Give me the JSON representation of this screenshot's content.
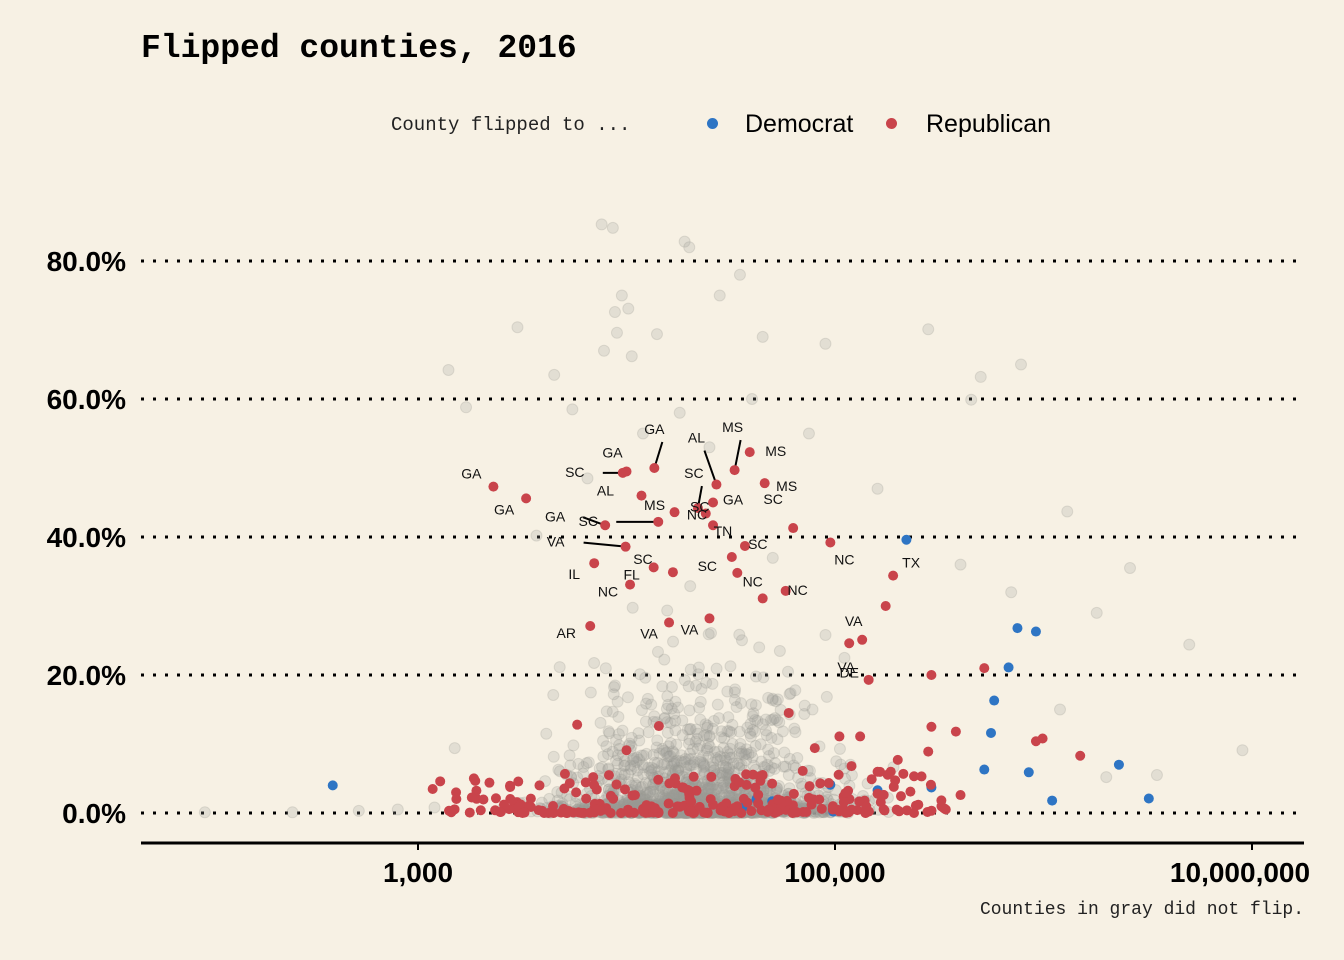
{
  "chart_data": {
    "type": "scatter",
    "title": "Flipped counties, 2016",
    "xlabel": "",
    "ylabel": "",
    "x_scale": "log10",
    "xlim": [
      50,
      20000000
    ],
    "ylim": [
      -4,
      90
    ],
    "x_ticks": [
      1000,
      100000,
      10000000
    ],
    "x_tick_labels": [
      "1,000",
      "100,000",
      "10,000,000"
    ],
    "y_ticks": [
      0,
      20,
      40,
      60,
      80
    ],
    "y_tick_labels": [
      "0.0%",
      "20.0%",
      "40.0%",
      "60.0%",
      "80.0%"
    ],
    "grid": "horizontal dotted",
    "legend": {
      "title": "County flipped to ...",
      "placement": "top-center",
      "entries": [
        {
          "name": "Democrat",
          "color": "#2e75c4"
        },
        {
          "name": "Republican",
          "color": "#c9444b"
        }
      ]
    },
    "caption": "Counties in gray did not flip.",
    "colors": {
      "background": "#f7f1e4",
      "gray": "#9a9a94",
      "democrat": "#2e75c4",
      "republican": "#c9444b"
    },
    "series": [
      {
        "name": "Democrat",
        "points": [
          {
            "pop": 390,
            "pct": 4.0
          },
          {
            "pop": 220000,
            "pct": 39.6
          },
          {
            "pop": 750000,
            "pct": 26.8
          },
          {
            "pop": 920000,
            "pct": 26.3
          },
          {
            "pop": 680000,
            "pct": 21.1
          },
          {
            "pop": 580000,
            "pct": 16.3
          },
          {
            "pop": 560000,
            "pct": 11.6
          },
          {
            "pop": 520000,
            "pct": 6.3
          },
          {
            "pop": 850000,
            "pct": 5.9
          },
          {
            "pop": 1100000,
            "pct": 1.8
          },
          {
            "pop": 2300000,
            "pct": 7.0
          },
          {
            "pop": 3200000,
            "pct": 2.1
          },
          {
            "pop": 290000,
            "pct": 3.7
          },
          {
            "pop": 160000,
            "pct": 3.3
          },
          {
            "pop": 95000,
            "pct": 4.1
          },
          {
            "pop": 42000,
            "pct": 2.0
          },
          {
            "pop": 50000,
            "pct": 1.7
          },
          {
            "pop": 36000,
            "pct": 0.8
          },
          {
            "pop": 98000,
            "pct": 0.2
          }
        ]
      },
      {
        "name": "Republican",
        "points": [
          {
            "pop": 2300,
            "pct": 47.3,
            "label": "GA"
          },
          {
            "pop": 3300,
            "pct": 45.6,
            "label": "GA"
          },
          {
            "pop": 9600,
            "pct": 49.3,
            "label": "SC"
          },
          {
            "pop": 10000,
            "pct": 49.5,
            "label": "GA"
          },
          {
            "pop": 7900,
            "pct": 41.7,
            "label": "GA"
          },
          {
            "pop": 9900,
            "pct": 38.6,
            "label": "VA"
          },
          {
            "pop": 14200,
            "pct": 42.2,
            "label": "SC"
          },
          {
            "pop": 11800,
            "pct": 46.0,
            "label": "AL"
          },
          {
            "pop": 13600,
            "pct": 50.0,
            "label": "GA"
          },
          {
            "pop": 27000,
            "pct": 47.6,
            "label": "AL"
          },
          {
            "pop": 33000,
            "pct": 49.7,
            "label": "MS"
          },
          {
            "pop": 22000,
            "pct": 44.2,
            "label": "SC"
          },
          {
            "pop": 26000,
            "pct": 45.0,
            "label": "GA"
          },
          {
            "pop": 17000,
            "pct": 43.6,
            "label": "MS"
          },
          {
            "pop": 24000,
            "pct": 43.4,
            "label": "SC"
          },
          {
            "pop": 26000,
            "pct": 41.7,
            "label": "NC"
          },
          {
            "pop": 39000,
            "pct": 52.3,
            "label": "MS"
          },
          {
            "pop": 46000,
            "pct": 47.8,
            "label": "MS"
          },
          {
            "pop": 63000,
            "pct": 41.3,
            "label": "SC"
          },
          {
            "pop": 37000,
            "pct": 38.7,
            "label": "TN"
          },
          {
            "pop": 32000,
            "pct": 37.1,
            "label": "SC"
          },
          {
            "pop": 34000,
            "pct": 34.8,
            "label": "SC"
          },
          {
            "pop": 13500,
            "pct": 35.6,
            "label": "FL"
          },
          {
            "pop": 16700,
            "pct": 34.9,
            "label": "SC"
          },
          {
            "pop": 7000,
            "pct": 36.2,
            "label": "IL"
          },
          {
            "pop": 10400,
            "pct": 33.1,
            "label": "NC"
          },
          {
            "pop": 6700,
            "pct": 27.1,
            "label": "AR"
          },
          {
            "pop": 16000,
            "pct": 27.6,
            "label": "VA"
          },
          {
            "pop": 25000,
            "pct": 28.2,
            "label": "VA"
          },
          {
            "pop": 45000,
            "pct": 31.1,
            "label": "NC"
          },
          {
            "pop": 58000,
            "pct": 32.2,
            "label": "NC"
          },
          {
            "pop": 95000,
            "pct": 39.2,
            "label": "NC"
          },
          {
            "pop": 190000,
            "pct": 34.4,
            "label": "TX"
          },
          {
            "pop": 175000,
            "pct": 30.0,
            "label": "VA"
          },
          {
            "pop": 135000,
            "pct": 25.1,
            "label": "VA"
          },
          {
            "pop": 117000,
            "pct": 24.6,
            "label": "DE"
          },
          {
            "pop": 145000,
            "pct": 19.3
          },
          {
            "pop": 290000,
            "pct": 20.0
          },
          {
            "pop": 520000,
            "pct": 21.0
          },
          {
            "pop": 1500000,
            "pct": 8.3
          },
          {
            "pop": 920000,
            "pct": 10.4
          },
          {
            "pop": 990000,
            "pct": 10.8
          },
          {
            "pop": 5800,
            "pct": 12.8
          },
          {
            "pop": 10000,
            "pct": 9.1
          },
          {
            "pop": 14300,
            "pct": 12.6
          },
          {
            "pop": 60000,
            "pct": 14.5
          },
          {
            "pop": 80000,
            "pct": 9.4
          },
          {
            "pop": 105000,
            "pct": 11.1
          },
          {
            "pop": 132000,
            "pct": 11.1
          },
          {
            "pop": 290000,
            "pct": 12.5
          },
          {
            "pop": 380000,
            "pct": 11.8
          },
          {
            "pop": 280000,
            "pct": 8.9
          },
          {
            "pop": 7200,
            "pct": 3.4
          },
          {
            "pop": 2000,
            "pct": 0.4
          },
          {
            "pop": 3200,
            "pct": 0.5
          },
          {
            "pop": 5000,
            "pct": 0.6
          },
          {
            "pop": 8000,
            "pct": 0.7
          },
          {
            "pop": 12000,
            "pct": 0.6
          },
          {
            "pop": 18000,
            "pct": 0.9
          },
          {
            "pop": 26000,
            "pct": 1.2
          },
          {
            "pop": 38000,
            "pct": 1.5
          },
          {
            "pop": 55000,
            "pct": 1.8
          },
          {
            "pop": 75000,
            "pct": 2.2
          },
          {
            "pop": 110000,
            "pct": 2.4
          },
          {
            "pop": 160000,
            "pct": 2.8
          },
          {
            "pop": 230000,
            "pct": 3.1
          },
          {
            "pop": 400000,
            "pct": 2.6
          },
          {
            "pop": 45000,
            "pct": 5.5
          },
          {
            "pop": 70000,
            "pct": 6.1
          },
          {
            "pop": 120000,
            "pct": 6.8
          },
          {
            "pop": 200000,
            "pct": 7.7
          },
          {
            "pop": 33000,
            "pct": 3.9
          },
          {
            "pop": 20000,
            "pct": 2.7
          },
          {
            "pop": 85000,
            "pct": 4.3
          },
          {
            "pop": 150000,
            "pct": 4.9
          },
          {
            "pop": 260000,
            "pct": 5.3
          }
        ]
      },
      {
        "name": "Did not flip",
        "points": [
          {
            "pop": 95,
            "pct": 0.1
          },
          {
            "pop": 250,
            "pct": 0.1
          },
          {
            "pop": 520,
            "pct": 0.3
          },
          {
            "pop": 800,
            "pct": 0.5
          },
          {
            "pop": 1200,
            "pct": 0.8
          },
          {
            "pop": 1500,
            "pct": 9.4
          },
          {
            "pop": 1400,
            "pct": 64.2
          },
          {
            "pop": 1700,
            "pct": 58.8
          },
          {
            "pop": 3000,
            "pct": 70.4
          },
          {
            "pop": 4500,
            "pct": 63.5
          },
          {
            "pop": 5500,
            "pct": 58.5
          },
          {
            "pop": 3700,
            "pct": 40.2
          },
          {
            "pop": 6500,
            "pct": 48.5
          },
          {
            "pop": 7600,
            "pct": 85.3
          },
          {
            "pop": 8600,
            "pct": 84.8
          },
          {
            "pop": 9500,
            "pct": 75.0
          },
          {
            "pop": 8800,
            "pct": 72.6
          },
          {
            "pop": 10200,
            "pct": 73.1
          },
          {
            "pop": 9000,
            "pct": 69.6
          },
          {
            "pop": 7800,
            "pct": 67.0
          },
          {
            "pop": 10600,
            "pct": 66.2
          },
          {
            "pop": 14000,
            "pct": 69.4
          },
          {
            "pop": 19000,
            "pct": 82.8
          },
          {
            "pop": 20000,
            "pct": 82.0
          },
          {
            "pop": 28000,
            "pct": 75.0
          },
          {
            "pop": 35000,
            "pct": 78.0
          },
          {
            "pop": 45000,
            "pct": 69.0
          },
          {
            "pop": 90000,
            "pct": 68.0
          },
          {
            "pop": 280000,
            "pct": 70.1
          },
          {
            "pop": 500000,
            "pct": 63.2
          },
          {
            "pop": 780000,
            "pct": 65.0
          },
          {
            "pop": 450000,
            "pct": 59.9
          },
          {
            "pop": 1300000,
            "pct": 43.7
          },
          {
            "pop": 2600000,
            "pct": 35.5
          },
          {
            "pop": 5000000,
            "pct": 24.4
          },
          {
            "pop": 9000000,
            "pct": 9.1
          },
          {
            "pop": 3500000,
            "pct": 5.5
          },
          {
            "pop": 2000000,
            "pct": 5.2
          },
          {
            "pop": 1200000,
            "pct": 15.0
          },
          {
            "pop": 1800000,
            "pct": 29.0
          },
          {
            "pop": 700000,
            "pct": 32.0
          },
          {
            "pop": 400000,
            "pct": 36.0
          },
          {
            "pop": 160000,
            "pct": 47.0
          },
          {
            "pop": 75000,
            "pct": 55.0
          },
          {
            "pop": 40000,
            "pct": 60.0
          },
          {
            "pop": 18000,
            "pct": 58.0
          },
          {
            "pop": 12000,
            "pct": 55.0
          },
          {
            "pop": 25000,
            "pct": 53.0
          }
        ]
      }
    ]
  }
}
